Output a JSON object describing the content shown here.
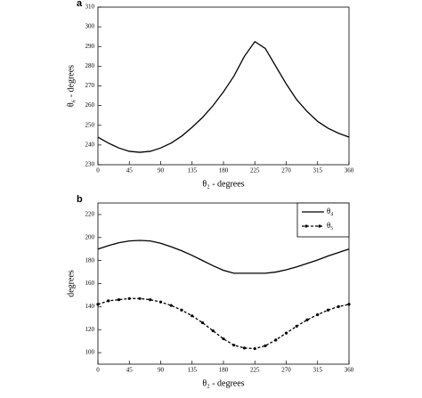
{
  "chart_data": [
    {
      "type": "line",
      "panel": "a",
      "x_label": "θ₂ - degrees",
      "y_label": "θ₆ - degrees",
      "x": [
        0,
        15,
        30,
        45,
        60,
        75,
        90,
        105,
        120,
        135,
        150,
        165,
        180,
        195,
        210,
        225,
        240,
        255,
        270,
        285,
        300,
        315,
        330,
        345,
        360
      ],
      "series": [
        {
          "name": "θ₆",
          "color": "#000000",
          "dash": false,
          "marker": false,
          "values": [
            244,
            241,
            238.5,
            236.8,
            236.3,
            236.8,
            238.5,
            241,
            244.5,
            249,
            254,
            260,
            267,
            275,
            285,
            292.5,
            289,
            280,
            271,
            263,
            257,
            252,
            248.5,
            246,
            244
          ]
        }
      ],
      "xlim": [
        0,
        360
      ],
      "xticks": [
        0,
        45,
        90,
        135,
        180,
        225,
        270,
        315,
        360
      ],
      "ylim": [
        230,
        310
      ],
      "yticks": [
        230,
        240,
        250,
        260,
        270,
        280,
        290,
        300,
        310
      ],
      "legend": false
    },
    {
      "type": "line",
      "panel": "b",
      "x_label": "θ₂ - degrees",
      "y_label": "degrees",
      "x": [
        0,
        15,
        30,
        45,
        60,
        75,
        90,
        105,
        120,
        135,
        150,
        165,
        180,
        195,
        210,
        225,
        240,
        255,
        270,
        285,
        300,
        315,
        330,
        345,
        360
      ],
      "series": [
        {
          "name": "θ₄",
          "color": "#000000",
          "dash": false,
          "marker": false,
          "values": [
            190,
            193,
            195.5,
            197,
            197.5,
            197,
            195,
            192,
            188.5,
            184.5,
            180,
            175.5,
            171.5,
            169,
            169,
            169,
            169,
            170,
            172,
            174.5,
            177.5,
            180.5,
            184,
            187,
            190
          ]
        },
        {
          "name": "θ₅",
          "color": "#000000",
          "dash": true,
          "marker": true,
          "values": [
            142,
            145,
            146,
            147,
            147,
            146,
            144,
            141,
            137,
            132,
            126,
            119,
            112,
            106.5,
            104,
            103.5,
            106,
            111,
            117,
            123,
            128.5,
            133,
            137,
            140,
            142
          ]
        }
      ],
      "xlim": [
        0,
        360
      ],
      "xticks": [
        0,
        45,
        90,
        135,
        180,
        225,
        270,
        315,
        360
      ],
      "ylim": [
        90,
        230
      ],
      "yticks": [
        100,
        120,
        140,
        160,
        180,
        200,
        220
      ],
      "legend": "upper right"
    }
  ]
}
